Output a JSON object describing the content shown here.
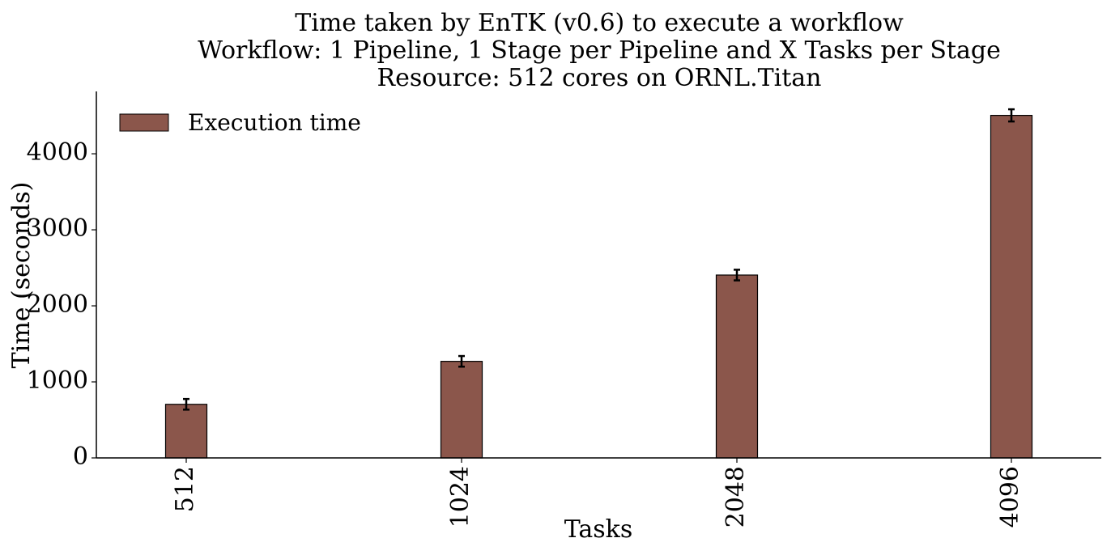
{
  "chart_data": {
    "type": "bar",
    "title": [
      "Time taken by EnTK (v0.6) to execute a workflow",
      "Workflow: 1 Pipeline, 1 Stage per Pipeline and X Tasks per Stage",
      "Resource: 512 cores on ORNL.Titan"
    ],
    "xlabel": "Tasks",
    "ylabel": "Time (seconds)",
    "categories": [
      "512",
      "1024",
      "2048",
      "4096"
    ],
    "series": [
      {
        "name": "Execution time",
        "values": [
          705,
          1270,
          2405,
          4505
        ],
        "errors": [
          70,
          70,
          70,
          80
        ],
        "color": "#8b564b"
      }
    ],
    "ylim": [
      0,
      4820
    ],
    "yticks": [
      0,
      1000,
      2000,
      3000,
      4000
    ],
    "legend_placement": "upper-left",
    "grid": false
  }
}
